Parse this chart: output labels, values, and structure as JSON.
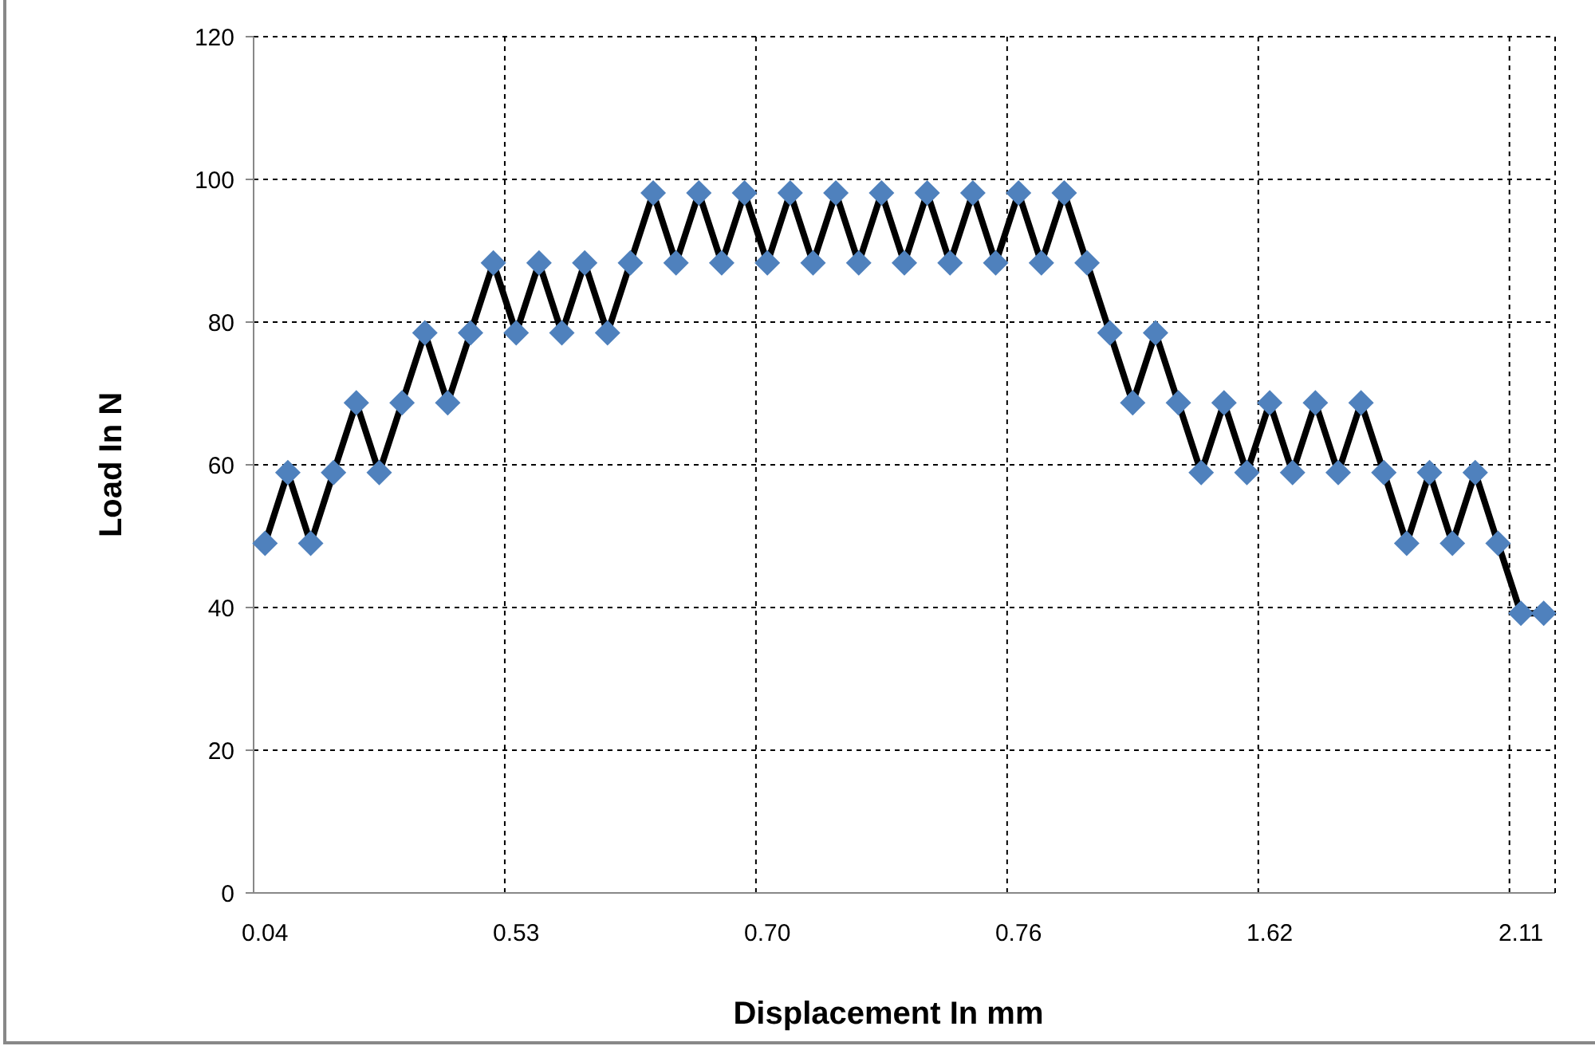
{
  "chart_data": {
    "type": "line",
    "xlabel": "Displacement In mm",
    "ylabel": "Load In N",
    "categories": [
      "0.04",
      null,
      null,
      null,
      null,
      null,
      null,
      null,
      null,
      null,
      null,
      "0.53",
      null,
      null,
      null,
      null,
      null,
      null,
      null,
      null,
      null,
      null,
      "0.70",
      null,
      null,
      null,
      null,
      null,
      null,
      null,
      null,
      null,
      null,
      "0.76",
      null,
      null,
      null,
      null,
      null,
      null,
      null,
      null,
      null,
      null,
      "1.62",
      null,
      null,
      null,
      null,
      null,
      null,
      null,
      null,
      null,
      null,
      "2.11",
      null
    ],
    "series": [
      {
        "color": "#4f81bd",
        "values": [
          49,
          58.9,
          49,
          58.9,
          68.7,
          58.9,
          68.7,
          78.5,
          68.7,
          78.5,
          88.3,
          78.5,
          88.3,
          78.5,
          88.3,
          78.5,
          88.3,
          98.1,
          88.3,
          98.1,
          88.3,
          98.1,
          88.3,
          98.1,
          88.3,
          98.1,
          88.3,
          98.1,
          88.3,
          98.1,
          88.3,
          98.1,
          88.3,
          98.1,
          88.3,
          98.1,
          88.3,
          78.5,
          68.7,
          78.5,
          68.7,
          58.9,
          68.7,
          58.9,
          68.7,
          58.9,
          68.7,
          58.9,
          68.7,
          58.9,
          49,
          58.9,
          49,
          58.9,
          49,
          39.2,
          39.2
        ]
      }
    ],
    "ylim": [
      0,
      120
    ],
    "yticks": [
      0,
      20,
      40,
      60,
      80,
      100,
      120
    ],
    "grid": true,
    "marker": "diamond",
    "line_style": "solid"
  }
}
